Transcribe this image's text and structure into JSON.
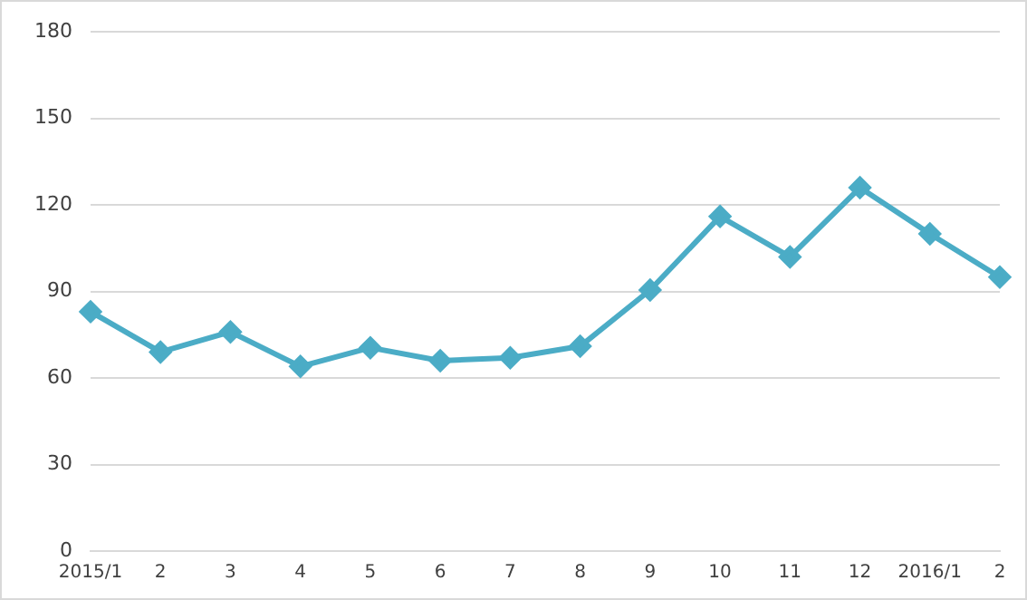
{
  "chart_data": {
    "type": "line",
    "categories": [
      "2015/1",
      "2",
      "3",
      "4",
      "5",
      "6",
      "7",
      "8",
      "9",
      "10",
      "11",
      "12",
      "2016/1",
      "2"
    ],
    "series": [
      {
        "color": "#4bacc6",
        "values": [
          83,
          69,
          76,
          64,
          70.5,
          66,
          67,
          71,
          90.5,
          116,
          102,
          126,
          110,
          95
        ]
      }
    ],
    "ylim": [
      0,
      180
    ],
    "yticks": [
      0,
      30,
      60,
      90,
      120,
      150,
      180
    ],
    "grid": "y",
    "legend": false,
    "marker": "diamond",
    "line_style": "solid"
  }
}
